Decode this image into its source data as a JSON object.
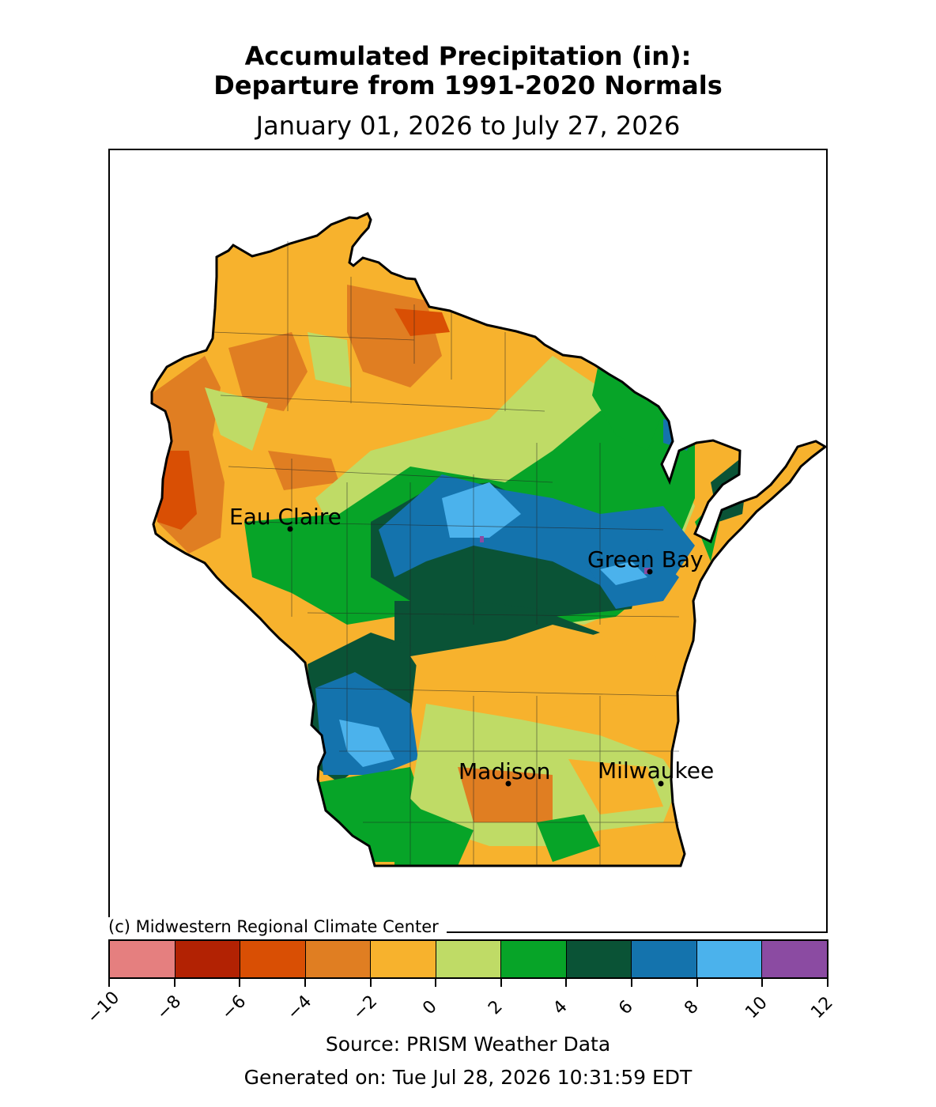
{
  "title_line1": "Accumulated Precipitation (in):",
  "title_line2": "Departure from 1991-2020 Normals",
  "date_range": "January 01, 2026 to July 27, 2026",
  "credit": "(c) Midwestern Regional Climate Center",
  "source": "Source: PRISM Weather Data",
  "generated": "Generated on: Tue Jul 28, 2026 10:31:59 EDT",
  "cities": [
    {
      "name": "Eau Claire"
    },
    {
      "name": "Green Bay"
    },
    {
      "name": "Madison"
    },
    {
      "name": "Milwaukee"
    }
  ],
  "colorbar": {
    "ticks": [
      "−10",
      "−8",
      "−6",
      "−4",
      "−2",
      "0",
      "2",
      "4",
      "6",
      "8",
      "10",
      "12"
    ],
    "colors": [
      "#e57f7f",
      "#b22203",
      "#d94f04",
      "#e07e22",
      "#f7b22d",
      "#bfdb66",
      "#07a428",
      "#0a5336",
      "#1473ad",
      "#4bb2ec",
      "#8b4ba2"
    ]
  }
}
